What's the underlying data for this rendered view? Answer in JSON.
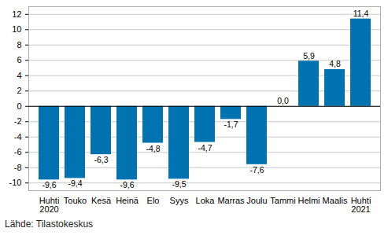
{
  "chart_data": {
    "type": "bar",
    "categories": [
      "Huhti\n2020",
      "Touko",
      "Kesä",
      "Heinä",
      "Elo",
      "Syys",
      "Loka",
      "Marras",
      "Joulu",
      "Tammi",
      "Helmi",
      "Maalis",
      "Huhti\n2021"
    ],
    "values": [
      -9.6,
      -9.4,
      -6.3,
      -9.6,
      -4.8,
      -9.5,
      -4.7,
      -1.7,
      -7.6,
      0.0,
      5.9,
      4.8,
      11.4
    ],
    "value_labels": [
      "-9,6",
      "-9,4",
      "-6,3",
      "-9,6",
      "-4,8",
      "-9,5",
      "-4,7",
      "-1,7",
      "-7,6",
      "0,0",
      "5,9",
      "4,8",
      "11,4"
    ],
    "data_labels": true,
    "color": "#0073b0",
    "ylim": [
      -11,
      13
    ],
    "yticks": [
      -10,
      -8,
      -6,
      -4,
      -2,
      0,
      2,
      4,
      6,
      8,
      10,
      12
    ],
    "grid": true,
    "caption": "Lähde: Tilastokeskus"
  }
}
